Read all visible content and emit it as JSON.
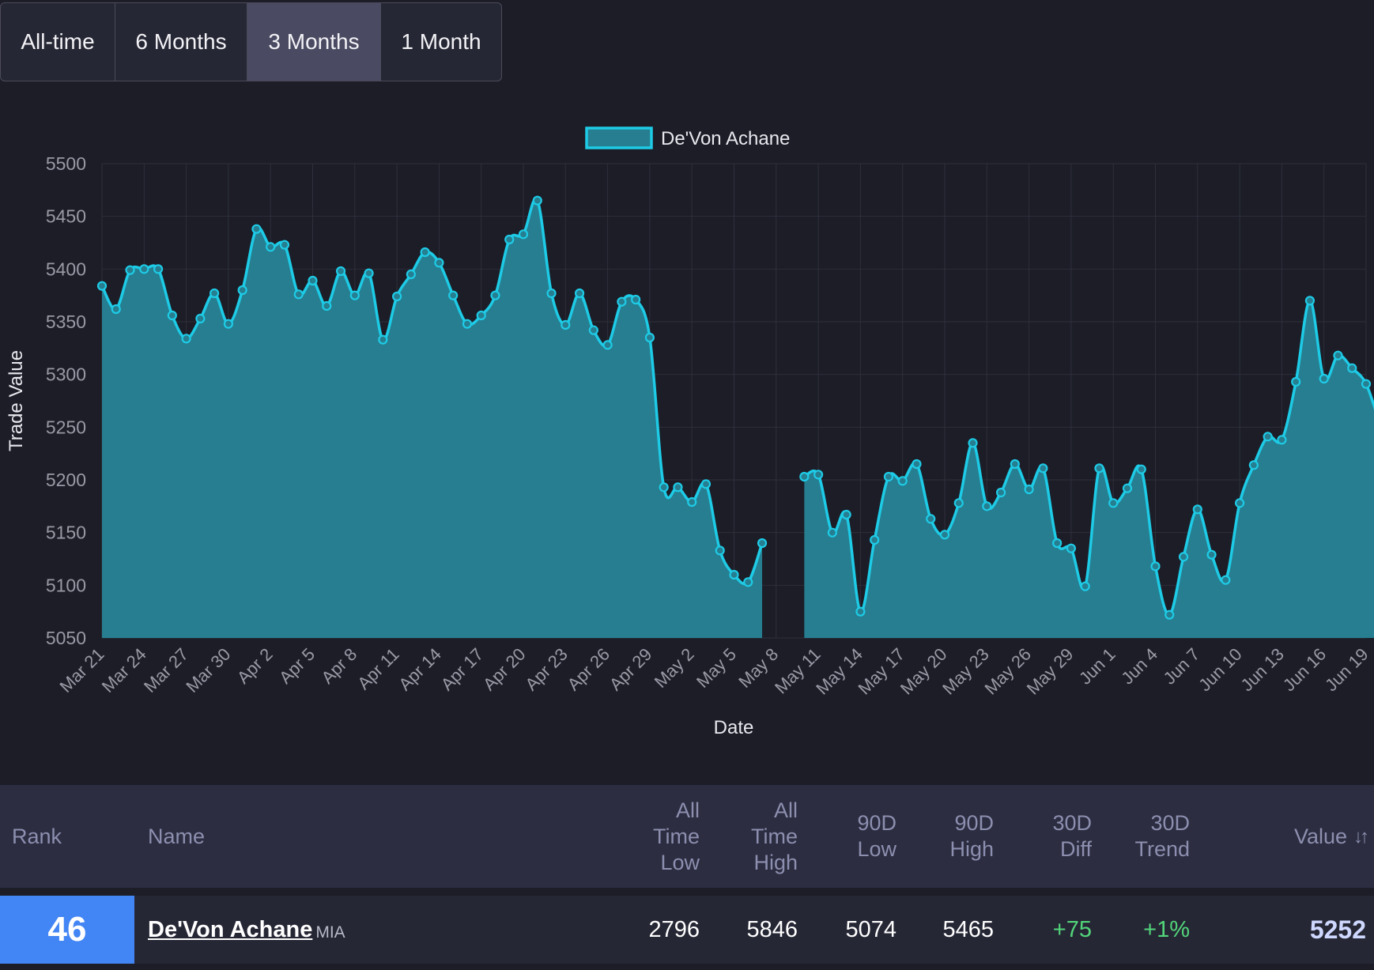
{
  "range_tabs": [
    {
      "label": "All-time",
      "active": false
    },
    {
      "label": "6 Months",
      "active": false
    },
    {
      "label": "3 Months",
      "active": true
    },
    {
      "label": "1 Month",
      "active": false
    }
  ],
  "chart_data": {
    "type": "area",
    "legend": "De'Von Achane",
    "xlabel": "Date",
    "ylabel": "Trade Value",
    "ylim": [
      5050,
      5500
    ],
    "yticks": [
      5500,
      5450,
      5400,
      5350,
      5300,
      5250,
      5200,
      5150,
      5100,
      5050
    ],
    "xticks": [
      "Mar 21",
      "Mar 24",
      "Mar 27",
      "Mar 30",
      "Apr 2",
      "Apr 5",
      "Apr 8",
      "Apr 11",
      "Apr 14",
      "Apr 17",
      "Apr 20",
      "Apr 23",
      "Apr 26",
      "Apr 29",
      "May 2",
      "May 5",
      "May 8",
      "May 11",
      "May 14",
      "May 17",
      "May 20",
      "May 23",
      "May 26",
      "May 29",
      "Jun 1",
      "Jun 4",
      "Jun 7",
      "Jun 10",
      "Jun 13",
      "Jun 16",
      "Jun 19"
    ],
    "grid": true,
    "legend_position": "top",
    "color": "#1ecbe6",
    "fill": "#267e90",
    "segments": [
      {
        "start_date": "Mar 21",
        "values": [
          5384,
          5362,
          5399,
          5400,
          5400,
          5356,
          5334,
          5353,
          5377,
          5348,
          5380,
          5438,
          5421,
          5423,
          5376,
          5389,
          5365,
          5398,
          5375,
          5396,
          5333,
          5374,
          5395,
          5416,
          5406,
          5375,
          5348,
          5356,
          5375,
          5428,
          5433,
          5465,
          5377,
          5347,
          5377,
          5342,
          5328,
          5369,
          5371,
          5335,
          5193,
          5193,
          5179,
          5196,
          5133,
          5110,
          5103,
          5140
        ]
      },
      {
        "start_date": "May 10",
        "values": [
          5203,
          5205,
          5150,
          5167,
          5075,
          5143,
          5203,
          5199,
          5215,
          5163,
          5148,
          5178,
          5235,
          5175,
          5188,
          5215,
          5191,
          5211,
          5140,
          5135,
          5099,
          5211,
          5178,
          5192,
          5210,
          5118,
          5072,
          5127,
          5172,
          5129,
          5105,
          5178,
          5214,
          5241,
          5238,
          5293,
          5370,
          5296,
          5318,
          5306,
          5291,
          5252
        ]
      }
    ]
  },
  "table": {
    "headers": {
      "rank": "Rank",
      "name": "Name",
      "atl": [
        "All",
        "Time",
        "Low"
      ],
      "ath": [
        "All",
        "Time",
        "High"
      ],
      "low90": [
        "90D",
        "Low"
      ],
      "high90": [
        "90D",
        "High"
      ],
      "diff30": [
        "30D",
        "Diff"
      ],
      "trend30": [
        "30D",
        "Trend"
      ],
      "value": "Value",
      "sort_icon": "↓↑"
    },
    "row": {
      "rank": "46",
      "name": "De'Von Achane",
      "team": "MIA",
      "atl": "2796",
      "ath": "5846",
      "low90": "5074",
      "high90": "5465",
      "diff30": "+75",
      "trend30": "+1%",
      "value": "5252"
    }
  }
}
